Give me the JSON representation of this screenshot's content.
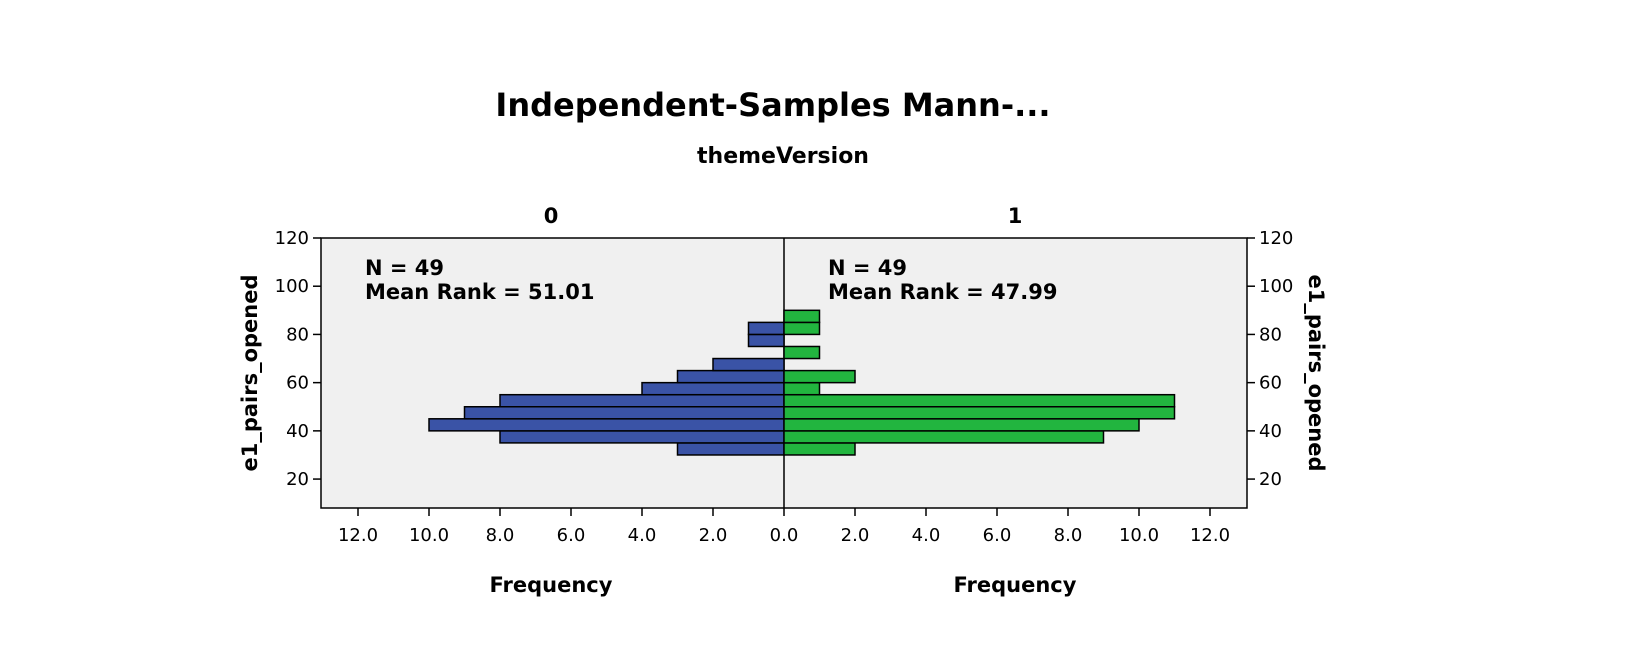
{
  "chart_data": {
    "type": "bar",
    "orientation": "horizontal-back-to-back",
    "title": "Independent-Samples Mann-...",
    "subtitle": "themeVersion",
    "ylabel": "e1_pairs_opened",
    "ylim": [
      8,
      120
    ],
    "yticks": [
      "20",
      "40",
      "60",
      "80",
      "100",
      "120"
    ],
    "xlim": [
      0,
      12.0
    ],
    "xticks": [
      "12.0",
      "10.0",
      "8.0",
      "6.0",
      "4.0",
      "2.0",
      "0.0",
      "2.0",
      "4.0",
      "6.0",
      "8.0",
      "10.0",
      "12.0"
    ],
    "bin_width": 5,
    "grid": false,
    "panels": [
      {
        "name": "0",
        "xlabel": "Frequency",
        "n_label": "N = 49",
        "mean_rank_label": "Mean Rank = 51.01",
        "color": "#3a53a6",
        "bins": [
          {
            "from": 30,
            "to": 35,
            "count": 3
          },
          {
            "from": 35,
            "to": 40,
            "count": 8
          },
          {
            "from": 40,
            "to": 45,
            "count": 10
          },
          {
            "from": 45,
            "to": 50,
            "count": 9
          },
          {
            "from": 50,
            "to": 55,
            "count": 8
          },
          {
            "from": 55,
            "to": 60,
            "count": 4
          },
          {
            "from": 60,
            "to": 65,
            "count": 3
          },
          {
            "from": 65,
            "to": 70,
            "count": 2
          },
          {
            "from": 75,
            "to": 80,
            "count": 1
          },
          {
            "from": 80,
            "to": 85,
            "count": 1
          }
        ]
      },
      {
        "name": "1",
        "xlabel": "Frequency",
        "n_label": "N = 49",
        "mean_rank_label": "Mean Rank = 47.99",
        "color": "#22b53f",
        "bins": [
          {
            "from": 30,
            "to": 35,
            "count": 2
          },
          {
            "from": 35,
            "to": 40,
            "count": 9
          },
          {
            "from": 40,
            "to": 45,
            "count": 10
          },
          {
            "from": 45,
            "to": 50,
            "count": 11
          },
          {
            "from": 50,
            "to": 55,
            "count": 11
          },
          {
            "from": 55,
            "to": 60,
            "count": 1
          },
          {
            "from": 60,
            "to": 65,
            "count": 2
          },
          {
            "from": 70,
            "to": 75,
            "count": 1
          },
          {
            "from": 80,
            "to": 85,
            "count": 1
          },
          {
            "from": 85,
            "to": 90,
            "count": 1
          }
        ]
      }
    ]
  },
  "colors": {
    "plot_background": "#f0f0f0",
    "bar_stroke": "#000000"
  }
}
